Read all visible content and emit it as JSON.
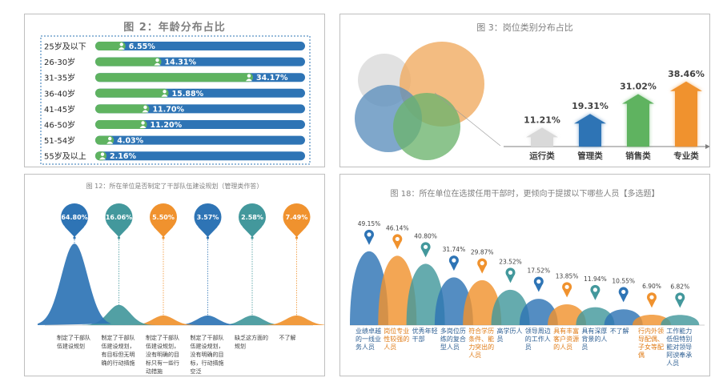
{
  "colors": {
    "blue": "#2e74b5",
    "green": "#5fb360",
    "orange": "#f0922e",
    "teal": "#43989c",
    "panel_border": "#bfbfbf"
  },
  "chart_data": [
    {
      "type": "bar",
      "title": "图 2：年龄分布占比",
      "categories": [
        "25岁及以下",
        "26-30岁",
        "31-35岁",
        "36-40岁",
        "41-45岁",
        "46-50岁",
        "51-54岁",
        "55岁及以上"
      ],
      "values": [
        6.55,
        14.31,
        34.17,
        15.88,
        11.7,
        11.2,
        4.03,
        2.16
      ],
      "value_labels": [
        "6.55%",
        "14.31%",
        "34.17%",
        "15.88%",
        "11.70%",
        "11.20%",
        "4.03%",
        "2.16%"
      ],
      "xlim": [
        0,
        100
      ],
      "bar_colors": [
        "#5fb360",
        "#2e74b5"
      ],
      "icon": "person-icon"
    },
    {
      "type": "bar",
      "title": "图 3：岗位类别分布占比",
      "categories": [
        "运行类",
        "管理类",
        "销售类",
        "专业类"
      ],
      "values": [
        11.21,
        19.31,
        31.02,
        38.46
      ],
      "value_labels": [
        "11.21%",
        "19.31%",
        "31.02%",
        "38.46%"
      ],
      "ylim": [
        0,
        45
      ],
      "bar_colors": [
        "#d9d9d9",
        "#2e74b5",
        "#5fb360",
        "#f0922e"
      ],
      "decoration": "venn-circles"
    },
    {
      "type": "area",
      "title": "图 12：所在单位是否制定了干部队伍建设规划（管理类作答）",
      "categories": [
        "制定了干部队伍建设规划",
        "制定了干部队伍建设规划，有目标但无明确的行动措施",
        "制定了干部队伍建设规划，没有明确的目标只有一些行动措施",
        "制定了干部队伍建设规划，没有明确的目标，行动措施空泛",
        "缺乏这方面的规划",
        "不了解"
      ],
      "values": [
        64.8,
        16.06,
        5.5,
        3.57,
        2.58,
        7.49
      ],
      "value_labels": [
        "64.80%",
        "16.06%",
        "5.50%",
        "3.57%",
        "2.58%",
        "7.49%"
      ],
      "ylim": [
        0,
        70
      ],
      "colors": [
        "#2e74b5",
        "#43989c",
        "#f0922e",
        "#2e74b5",
        "#43989c",
        "#f0922e"
      ]
    },
    {
      "type": "area",
      "title": "图 18：所在单位在选拔任用干部时，更倾向于提拔以下哪些人员【多选题】",
      "categories": [
        "业绩卓越的一线业务人员",
        "岗位专业性较强的人员",
        "优秀年轻干部",
        "多岗位历练的复合型人员",
        "符合学历条件、能力突出的人员",
        "高学历人员",
        "领导周边的工作人员",
        "具有丰富客户资源的人员",
        "具有深厚背景的人员",
        "不了解",
        "行内外领导配偶、子女等配偶",
        "工作能力低但特别能对领导阿谀奉承人员"
      ],
      "values": [
        49.15,
        46.14,
        40.8,
        31.74,
        29.87,
        23.52,
        17.52,
        13.85,
        11.94,
        10.55,
        6.9,
        6.82
      ],
      "value_labels": [
        "49.15%",
        "46.14%",
        "40.80%",
        "31.74%",
        "29.87%",
        "23.52%",
        "17.52%",
        "13.85%",
        "11.94%",
        "10.55%",
        "6.90%",
        "6.82%"
      ],
      "ylim": [
        0,
        55
      ],
      "colors": [
        "#2e74b5",
        "#f0922e",
        "#43989c",
        "#2e74b5",
        "#f0922e",
        "#43989c",
        "#2e74b5",
        "#f0922e",
        "#43989c",
        "#2e74b5",
        "#f0922e",
        "#43989c"
      ]
    }
  ]
}
